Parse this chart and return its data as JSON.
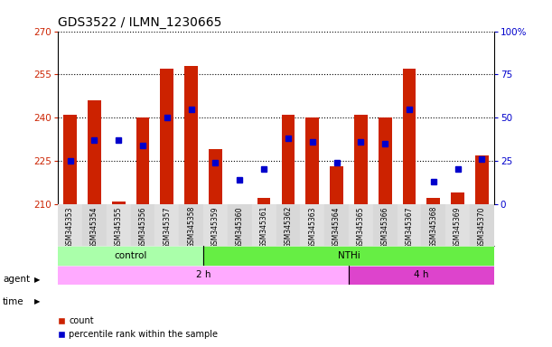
{
  "title": "GDS3522 / ILMN_1230665",
  "samples": [
    "GSM345353",
    "GSM345354",
    "GSM345355",
    "GSM345356",
    "GSM345357",
    "GSM345358",
    "GSM345359",
    "GSM345360",
    "GSM345361",
    "GSM345362",
    "GSM345363",
    "GSM345364",
    "GSM345365",
    "GSM345366",
    "GSM345367",
    "GSM345368",
    "GSM345369",
    "GSM345370"
  ],
  "counts": [
    241,
    246,
    211,
    240,
    257,
    258,
    229,
    210,
    212,
    241,
    240,
    223,
    241,
    240,
    257,
    212,
    214,
    227
  ],
  "percentiles": [
    25,
    37,
    37,
    34,
    50,
    55,
    24,
    14,
    20,
    38,
    36,
    24,
    36,
    35,
    55,
    13,
    20,
    26
  ],
  "ylim_left": [
    210,
    270
  ],
  "ylim_right": [
    0,
    100
  ],
  "yticks_left": [
    210,
    225,
    240,
    255,
    270
  ],
  "yticks_right": [
    0,
    25,
    50,
    75,
    100
  ],
  "bar_color": "#cc2200",
  "dot_color": "#0000cc",
  "bar_width": 0.55,
  "agent_groups": [
    {
      "label": "control",
      "start": 0,
      "end": 6,
      "color": "#aaffaa"
    },
    {
      "label": "NTHi",
      "start": 6,
      "end": 18,
      "color": "#66ee44"
    }
  ],
  "time_groups": [
    {
      "label": "2 h",
      "start": 0,
      "end": 12,
      "color": "#ffaaff"
    },
    {
      "label": "4 h",
      "start": 12,
      "end": 18,
      "color": "#dd44cc"
    }
  ],
  "grid_color": "#000000",
  "bg_color": "#ffffff",
  "legend_items": [
    {
      "label": "count",
      "color": "#cc2200"
    },
    {
      "label": "percentile rank within the sample",
      "color": "#0000cc"
    }
  ]
}
